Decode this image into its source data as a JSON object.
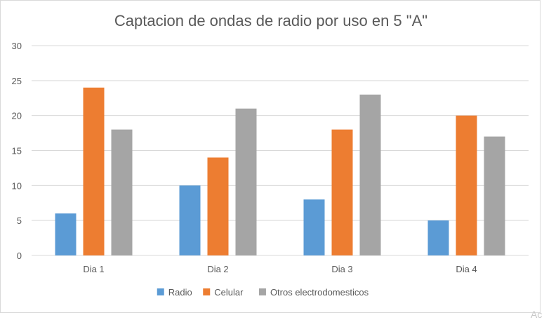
{
  "colors": {
    "radio": "#5b9bd5",
    "celular": "#ed7d31",
    "otros": "#a5a5a5",
    "grid": "#d9d9d9",
    "axis_text": "#595959",
    "title_text": "#595959"
  },
  "watermark": "Ac",
  "chart_data": {
    "type": "bar",
    "title": "Captacion de ondas de radio por uso en 5  \"A\"",
    "xlabel": "",
    "ylabel": "",
    "ylim": [
      0,
      30
    ],
    "yticks": [
      0,
      5,
      10,
      15,
      20,
      25,
      30
    ],
    "grid": true,
    "legend_position": "bottom",
    "categories": [
      "Dia 1",
      "Dia 2",
      "Dia 3",
      "Dia 4"
    ],
    "series": [
      {
        "name": "Radio",
        "color_key": "radio",
        "values": [
          6,
          10,
          8,
          5
        ]
      },
      {
        "name": "Celular",
        "color_key": "celular",
        "values": [
          24,
          14,
          18,
          20
        ]
      },
      {
        "name": "Otros electrodomesticos",
        "color_key": "otros",
        "values": [
          18,
          21,
          23,
          17
        ]
      }
    ]
  }
}
